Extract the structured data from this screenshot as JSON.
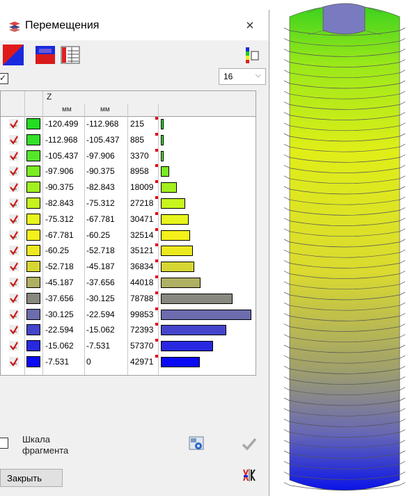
{
  "dialog": {
    "title": "Перемещения",
    "close_symbol": "×",
    "select_value": "16",
    "column_header": "Z",
    "units": [
      "мм",
      "мм"
    ],
    "scale_label": "Шкала фрагмента",
    "close_button": "Закрыть"
  },
  "icons": {
    "title": "displacement-icon",
    "toolbar": [
      "color-scale-diagonal-icon",
      "color-scale-gradient-icon",
      "table-grid-icon",
      "legend-columns-icon"
    ],
    "bottom": [
      "settings-icon",
      "apply-check-icon",
      "mirror-scale-icon"
    ]
  },
  "rows": [
    {
      "from": "-120.499",
      "to": "-112.968",
      "count": "215",
      "color": "#22dd22",
      "value": 215
    },
    {
      "from": "-112.968",
      "to": "-105.437",
      "count": "885",
      "color": "#33e02a",
      "value": 885
    },
    {
      "from": "-105.437",
      "to": "-97.906",
      "count": "3370",
      "color": "#55e62a",
      "value": 3370
    },
    {
      "from": "-97.906",
      "to": "-90.375",
      "count": "8958",
      "color": "#7aec22",
      "value": 8958
    },
    {
      "from": "-90.375",
      "to": "-82.843",
      "count": "18009",
      "color": "#a2f01e",
      "value": 18009
    },
    {
      "from": "-82.843",
      "to": "-75.312",
      "count": "27218",
      "color": "#c8f41e",
      "value": 27218
    },
    {
      "from": "-75.312",
      "to": "-67.781",
      "count": "30471",
      "color": "#e8f51c",
      "value": 30471
    },
    {
      "from": "-67.781",
      "to": "-60.25",
      "count": "32514",
      "color": "#f4f01a",
      "value": 32514
    },
    {
      "from": "-60.25",
      "to": "-52.718",
      "count": "35121",
      "color": "#ecea1e",
      "value": 35121
    },
    {
      "from": "-52.718",
      "to": "-45.187",
      "count": "36834",
      "color": "#d6d632",
      "value": 36834
    },
    {
      "from": "-45.187",
      "to": "-37.656",
      "count": "44018",
      "color": "#b0b062",
      "value": 44018
    },
    {
      "from": "-37.656",
      "to": "-30.125",
      "count": "78788",
      "color": "#888880",
      "value": 78788
    },
    {
      "from": "-30.125",
      "to": "-22.594",
      "count": "99853",
      "color": "#6c6cae",
      "value": 99853
    },
    {
      "from": "-22.594",
      "to": "-15.062",
      "count": "72393",
      "color": "#4444cc",
      "value": 72393
    },
    {
      "from": "-15.062",
      "to": "-7.531",
      "count": "57370",
      "color": "#2828e0",
      "value": 57370
    },
    {
      "from": "-7.531",
      "to": "0",
      "count": "42971",
      "color": "#0a0af5",
      "value": 42971
    }
  ],
  "max_count": 99853
}
